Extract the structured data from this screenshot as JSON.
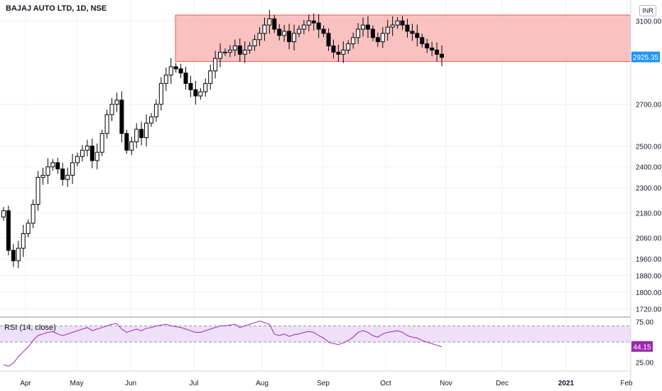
{
  "header": {
    "title": "BAJAJ AUTO LTD, 1D, NSE",
    "currency": "INR"
  },
  "rsi_panel": {
    "title": "RSI (14, close)"
  },
  "colors": {
    "zone_fill": "#f7a8a6",
    "zone_stroke": "#e35b57",
    "rsi_line": "#9c27b0",
    "rsi_band": "#ede0f7",
    "price_label": "#2196f3",
    "rsi_label": "#9c27b0"
  },
  "chart_data": [
    {
      "type": "candlestick",
      "title": "BAJAJ AUTO LTD, 1D, NSE",
      "ylim": [
        1680,
        3200
      ],
      "y_ticks": [
        1720,
        1800,
        1880,
        1960,
        2060,
        2180,
        2300,
        2400,
        2500,
        2700,
        3100
      ],
      "x_ticks": [
        "Apr",
        "May",
        "Jun",
        "Jul",
        "Aug",
        "Sep",
        "Oct",
        "Nov",
        "Dec",
        "2021",
        "Feb"
      ],
      "last_price": 2925.35,
      "last_price_label": "2925.35",
      "zone": {
        "low": 2905,
        "high": 3128,
        "from": "Jun",
        "to": "Feb"
      },
      "closes": [
        2190,
        2000,
        1950,
        2010,
        2080,
        2130,
        2220,
        2350,
        2360,
        2400,
        2420,
        2390,
        2340,
        2360,
        2420,
        2450,
        2480,
        2500,
        2430,
        2470,
        2560,
        2650,
        2700,
        2720,
        2560,
        2480,
        2520,
        2580,
        2540,
        2610,
        2640,
        2700,
        2800,
        2840,
        2880,
        2870,
        2850,
        2800,
        2770,
        2740,
        2760,
        2800,
        2860,
        2920,
        2950,
        2950,
        2960,
        2980,
        2940,
        2960,
        2980,
        3010,
        3040,
        3080,
        3110,
        3060,
        3030,
        3050,
        3000,
        3040,
        3060,
        3080,
        3100,
        3090,
        3060,
        3040,
        2980,
        2950,
        2940,
        2960,
        2990,
        3020,
        3060,
        3080,
        3060,
        3020,
        3000,
        3040,
        3070,
        3080,
        3100,
        3080,
        3050,
        3040,
        3020,
        2990,
        2970,
        2960,
        2940,
        2925
      ],
      "rsi": {
        "title": "RSI (14, close)",
        "ylim": [
          15,
          80
        ],
        "y_ticks": [
          25,
          75
        ],
        "upper": 70,
        "lower": 50,
        "last": 44.15,
        "last_label": "44.15",
        "values": [
          22,
          20,
          24,
          32,
          38,
          44,
          52,
          58,
          60,
          62,
          63,
          60,
          58,
          60,
          62,
          64,
          66,
          68,
          64,
          66,
          68,
          70,
          72,
          73,
          66,
          62,
          64,
          66,
          64,
          67,
          68,
          70,
          71,
          72,
          70,
          69,
          68,
          66,
          64,
          62,
          62,
          64,
          66,
          68,
          70,
          70,
          71,
          72,
          68,
          70,
          72,
          74,
          76,
          74,
          72,
          60,
          58,
          60,
          57,
          59,
          60,
          62,
          63,
          62,
          58,
          55,
          50,
          48,
          47,
          49,
          52,
          56,
          62,
          64,
          62,
          58,
          56,
          60,
          62,
          63,
          64,
          62,
          58,
          56,
          55,
          52,
          50,
          48,
          46,
          44
        ]
      }
    }
  ]
}
